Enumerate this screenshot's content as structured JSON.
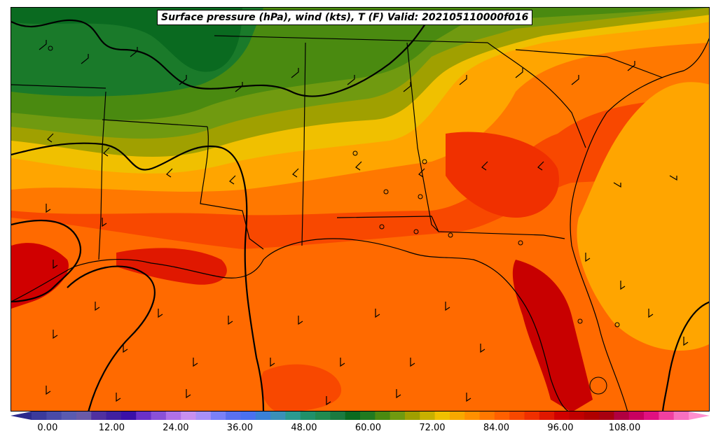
{
  "title": "Surface pressure (hPa), wind (kts), T (F) Valid: 202105110000f016",
  "colorbar": {
    "min": -3,
    "max": 120,
    "step": 3,
    "ticks": [
      "0.00",
      "12.00",
      "24.00",
      "36.00",
      "48.00",
      "60.00",
      "72.00",
      "84.00",
      "96.00",
      "108.00"
    ],
    "tick_values": [
      0,
      12,
      24,
      36,
      48,
      60,
      72,
      84,
      96,
      108
    ],
    "extend": "both",
    "colors": [
      "#2c2a8c",
      "#3b3a9c",
      "#4a4aa8",
      "#5a5ab0",
      "#6a5aa8",
      "#5030a0",
      "#4020a0",
      "#3a10a8",
      "#6a30c8",
      "#8a50d8",
      "#b070e8",
      "#c890f0",
      "#a890f8",
      "#7a80f8",
      "#5a70f0",
      "#4a70f0",
      "#3a80d8",
      "#3a90b8",
      "#2a9a90",
      "#20906a",
      "#208a50",
      "#1a7a40",
      "#0a6a20",
      "#207a20",
      "#4a8a10",
      "#709a10",
      "#a0a000",
      "#c8b000",
      "#f0c000",
      "#f8a800",
      "#ff9000",
      "#ff7800",
      "#ff6000",
      "#f84800",
      "#f03000",
      "#e01800",
      "#d00000",
      "#c00000",
      "#b00000",
      "#a80010",
      "#b00040",
      "#c80060",
      "#e01080",
      "#f040a0",
      "#f870c0",
      "#ff90d0"
    ]
  },
  "map": {
    "fill_colors": {
      "gulf": "#ff6a00",
      "band_orange_light": "#ffa500",
      "band_yellow": "#f0c000",
      "band_olive": "#a0a000",
      "band_lime": "#709a10",
      "band_green": "#4a8a10",
      "band_dark_green": "#1a7a2a",
      "band_darkest_green": "#0a6a20",
      "hot_red": "#e02000",
      "hottest": "#c80000"
    }
  }
}
